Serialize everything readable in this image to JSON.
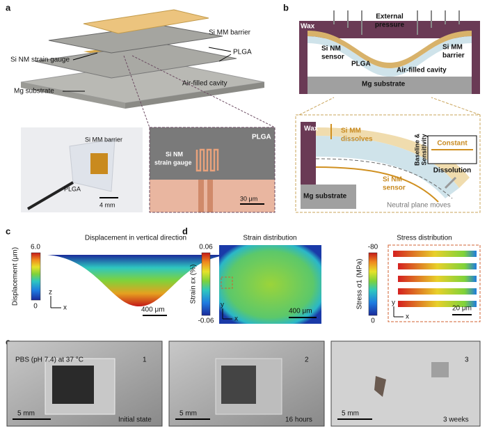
{
  "panel_a": {
    "letter": "a",
    "si_mm_barrier": "Si MM barrier",
    "plga": "PLGA",
    "si_nm_strain_gauge": "Si NM strain gauge",
    "air_filled_cavity": "Air-filled cavity",
    "mg_substrate": "Mg substrate",
    "photo": {
      "si_mm_barrier": "Si MM barrier",
      "plga": "PLGA",
      "scale": "4 mm"
    },
    "micrograph": {
      "plga": "PLGA",
      "gauge_line1": "Si NM",
      "gauge_line2": "strain gauge",
      "scale": "30 μm"
    }
  },
  "panel_b": {
    "letter": "b",
    "upper": {
      "wax": "Wax",
      "pressure_line1": "External",
      "pressure_line2": "pressure",
      "sensor_line1": "Si NM",
      "sensor_line2": "sensor",
      "barrier_line1": "Si MM",
      "barrier_line2": "barrier",
      "plga": "PLGA",
      "cavity": "Air-filled cavity",
      "mg": "Mg substrate"
    },
    "lower": {
      "wax": "Wax",
      "dissolves_line1": "Si MM",
      "dissolves_line2": "dissolves",
      "axis_line1": "Baseline &",
      "axis_line2": "Sensitivity",
      "constant": "Constant",
      "dissolution": "Dissolution",
      "mg": "Mg substrate",
      "sensor_line1": "Si NM",
      "sensor_line2": "sensor",
      "neutral": "Neutral plane moves"
    }
  },
  "panel_c": {
    "letter": "c",
    "title": "Displacement in vertical direction",
    "cbar_max": "6.0",
    "cbar_min": "0",
    "cbar_label": "Displacement (μm)",
    "axis_z": "z",
    "axis_x": "x",
    "scale": "400 μm"
  },
  "panel_d": {
    "letter": "d",
    "strain": {
      "title": "Strain distribution",
      "cbar_max": "0.06",
      "cbar_min": "-0.06",
      "cbar_label": "Strain εx (%)",
      "axis_y": "y",
      "axis_x": "x",
      "scale": "400 μm"
    },
    "stress": {
      "title": "Stress distribution",
      "cbar_max": "-80",
      "cbar_min": "0",
      "cbar_label": "Stress σ1 (MPa)",
      "axis_y": "y",
      "axis_x": "x",
      "scale": "20 μm"
    }
  },
  "panel_e": {
    "letter": "e",
    "photos": [
      {
        "condition": "PBS (pH 7.4) at 37 °C",
        "index": "1",
        "scale": "5 mm",
        "state": "Initial state"
      },
      {
        "index": "2",
        "scale": "5 mm",
        "state": "16 hours"
      },
      {
        "index": "3",
        "scale": "5 mm",
        "state": "3 weeks"
      }
    ]
  }
}
